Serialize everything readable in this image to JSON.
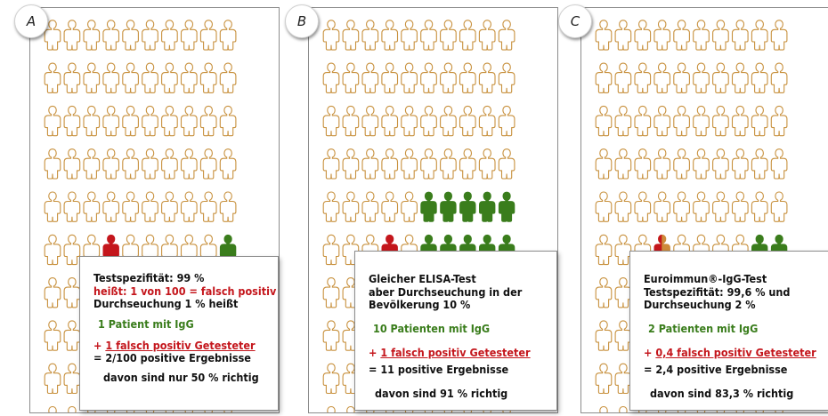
{
  "panels": [
    {
      "label": "A",
      "lines": [
        {
          "text": "Testspezifität: 99 %",
          "color": "black"
        },
        {
          "text": "heißt: 1 von 100 = falsch positiv",
          "color": "red"
        },
        {
          "text": "Durchseuchung 1 % heißt",
          "color": "black"
        },
        {
          "text": "1 Patient mit IgG",
          "color": "green"
        },
        {
          "prefix": "+ ",
          "text": "1 falsch positiv Getesteter",
          "color": "red",
          "underline": true
        },
        {
          "text": "= 2/100 positive Ergebnisse",
          "color": "black"
        },
        {
          "text": "davon sind nur 50 % richtig",
          "color": "black"
        }
      ],
      "highlighted": [
        {
          "row": 5,
          "col": 4,
          "type": "red"
        },
        {
          "row": 5,
          "col": 10,
          "type": "green"
        }
      ]
    },
    {
      "label": "B",
      "lines": [
        {
          "text": "Gleicher ELISA-Test",
          "color": "black"
        },
        {
          "text": "aber Durchseuchung in der",
          "color": "black"
        },
        {
          "text": "Bevölkerung 10 %",
          "color": "black"
        },
        {
          "text": "10 Patienten mit IgG",
          "color": "green"
        },
        {
          "prefix": "+ ",
          "text": "1 falsch positiv Getesteter",
          "color": "red",
          "underline": true
        },
        {
          "text": "= 11 positive Ergebnisse",
          "color": "black"
        },
        {
          "text": "davon sind 91 % richtig",
          "color": "black"
        }
      ],
      "highlighted": [
        {
          "row": 4,
          "col": 6,
          "type": "green"
        },
        {
          "row": 4,
          "col": 7,
          "type": "green"
        },
        {
          "row": 4,
          "col": 8,
          "type": "green"
        },
        {
          "row": 4,
          "col": 9,
          "type": "green"
        },
        {
          "row": 4,
          "col": 10,
          "type": "green"
        },
        {
          "row": 5,
          "col": 4,
          "type": "red"
        },
        {
          "row": 5,
          "col": 6,
          "type": "green"
        },
        {
          "row": 5,
          "col": 7,
          "type": "green"
        },
        {
          "row": 5,
          "col": 8,
          "type": "green"
        },
        {
          "row": 5,
          "col": 9,
          "type": "green"
        },
        {
          "row": 5,
          "col": 10,
          "type": "green"
        }
      ]
    },
    {
      "label": "C",
      "lines": [
        {
          "text": "Euroimmun®-IgG-Test",
          "color": "black"
        },
        {
          "text": "Testspezifität: 99,6 % und",
          "color": "black"
        },
        {
          "text": "Durchseuchung 2 %",
          "color": "black"
        },
        {
          "text": "2 Patienten mit IgG",
          "color": "green"
        },
        {
          "prefix": "+ ",
          "text": "0,4 falsch positiv Getesteter",
          "color": "red",
          "underline": true
        },
        {
          "text": "= 2,4 positive Ergebnisse",
          "color": "black"
        },
        {
          "text": "davon sind 83,3 % richtig",
          "color": "black"
        }
      ],
      "highlighted": [
        {
          "row": 5,
          "col": 4,
          "type": "partial"
        },
        {
          "row": 5,
          "col": 9,
          "type": "green"
        },
        {
          "row": 5,
          "col": 10,
          "type": "green"
        }
      ]
    }
  ],
  "colors": {
    "outline": "#c8913e",
    "red": "#c4161c",
    "green": "#3a7d1c",
    "partial_orange": "#cd8a3a"
  }
}
